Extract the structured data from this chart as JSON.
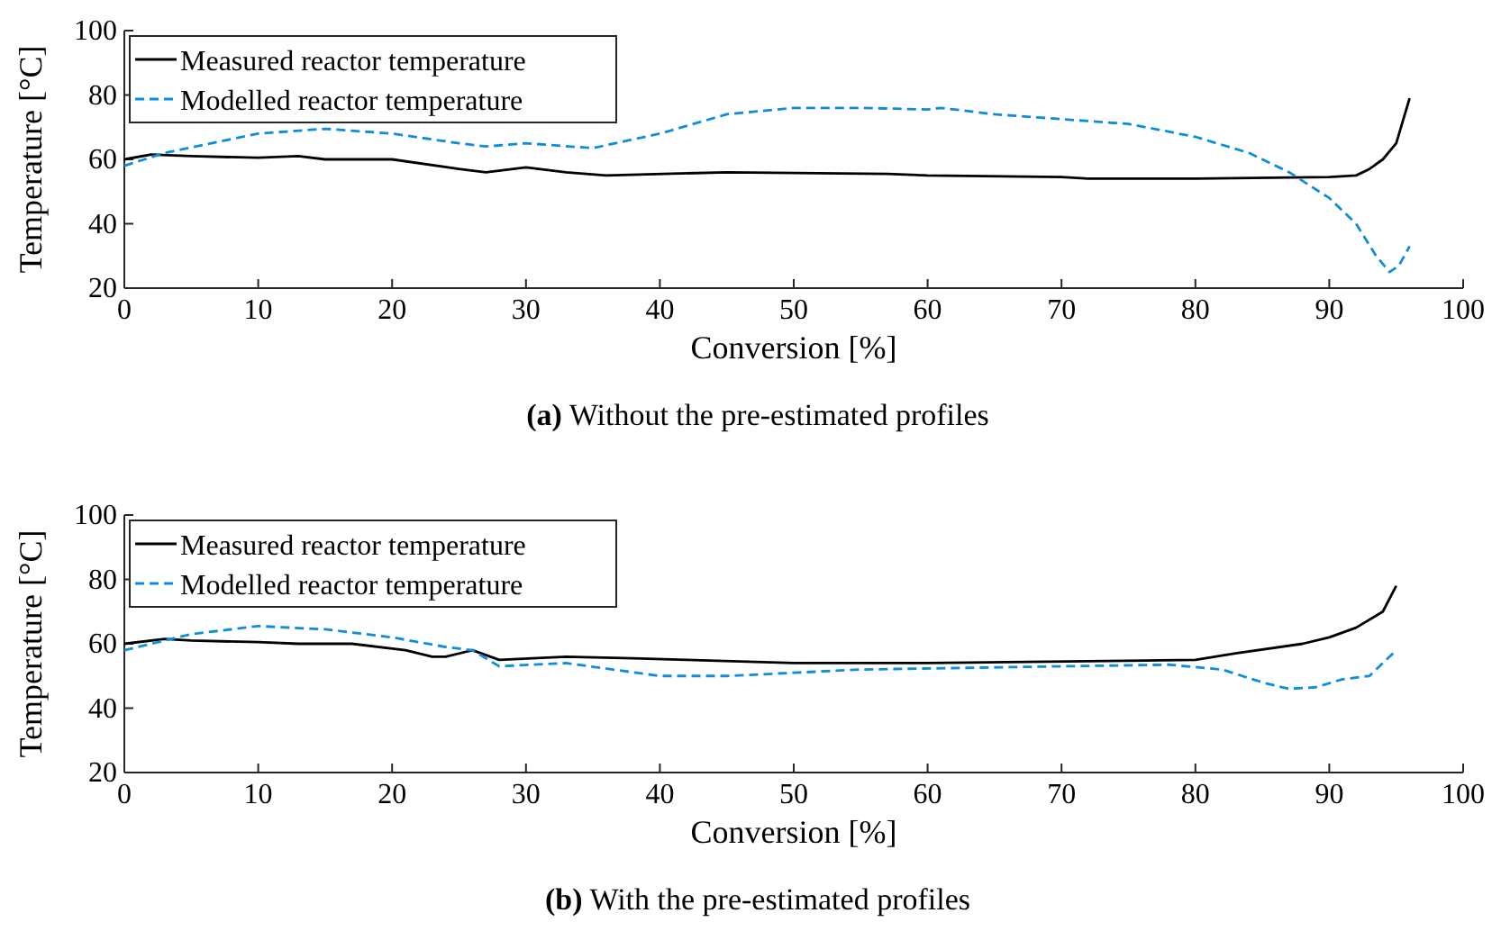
{
  "chart_data": [
    {
      "type": "line",
      "title": "(a) Without the pre-estimated profiles",
      "xlabel": "Conversion [%]",
      "ylabel": "Temperature [°C]",
      "xlim": [
        0,
        100
      ],
      "ylim": [
        20,
        100
      ],
      "xticks": [
        0,
        10,
        20,
        30,
        40,
        50,
        60,
        70,
        80,
        90,
        100
      ],
      "yticks": [
        20,
        40,
        60,
        80,
        100
      ],
      "legend": "top left",
      "grid": false,
      "series": [
        {
          "name": "Measured reactor temperature",
          "color": "#000000",
          "line_style": "solid",
          "x": [
            0,
            2,
            5,
            10,
            13,
            15,
            20,
            25,
            27,
            30,
            33,
            36,
            45,
            57,
            60,
            70,
            72,
            80,
            90,
            92,
            93,
            94,
            95,
            96
          ],
          "values": [
            60,
            61.5,
            61,
            60.5,
            61,
            60,
            60,
            57,
            56,
            57.5,
            56,
            55,
            56,
            55.5,
            55,
            54.5,
            54,
            54,
            54.5,
            55,
            57,
            60,
            65,
            79
          ]
        },
        {
          "name": "Modelled reactor temperature",
          "color": "#0d8ed9",
          "line_style": "dashed",
          "x": [
            0,
            3,
            10,
            15,
            20,
            25,
            27,
            30,
            35,
            40,
            45,
            50,
            55,
            60,
            61,
            65,
            75,
            80,
            84,
            87,
            90,
            92,
            93.5,
            94.5,
            95.2,
            96
          ],
          "values": [
            58,
            62,
            68,
            69.5,
            68,
            65,
            64,
            65,
            63.5,
            68,
            74,
            76,
            76,
            75.5,
            76,
            74,
            71,
            67,
            62,
            56,
            48,
            40,
            30,
            25,
            27,
            33
          ]
        }
      ]
    },
    {
      "type": "line",
      "title": "(b) With the pre-estimated profiles",
      "xlabel": "Conversion [%]",
      "ylabel": "Temperature [°C]",
      "xlim": [
        0,
        100
      ],
      "ylim": [
        20,
        100
      ],
      "xticks": [
        0,
        10,
        20,
        30,
        40,
        50,
        60,
        70,
        80,
        90,
        100
      ],
      "yticks": [
        20,
        40,
        60,
        80,
        100
      ],
      "legend": "top left",
      "grid": false,
      "series": [
        {
          "name": "Measured reactor temperature",
          "color": "#000000",
          "line_style": "solid",
          "x": [
            0,
            3,
            5,
            10,
            13,
            17,
            21,
            23,
            24,
            26,
            28,
            33,
            38,
            42,
            50,
            60,
            80,
            83,
            88,
            90,
            92,
            94,
            95
          ],
          "values": [
            60,
            61.5,
            61,
            60.5,
            60,
            60,
            58,
            56,
            56,
            58,
            55,
            56,
            55.5,
            55,
            54,
            54,
            55,
            57,
            60,
            62,
            65,
            70,
            78
          ]
        },
        {
          "name": "Modelled reactor temperature",
          "color": "#0d8ed9",
          "line_style": "dashed",
          "x": [
            0,
            5,
            10,
            15,
            20,
            24,
            26,
            28,
            33,
            40,
            45,
            50,
            55,
            70,
            78,
            82,
            85,
            87,
            89,
            91,
            93,
            95
          ],
          "values": [
            58,
            63,
            65.5,
            64.5,
            62,
            59,
            58,
            53,
            54,
            50,
            50,
            51,
            52,
            53,
            53.5,
            52,
            48,
            46,
            46.5,
            49,
            50,
            58
          ]
        }
      ]
    }
  ]
}
